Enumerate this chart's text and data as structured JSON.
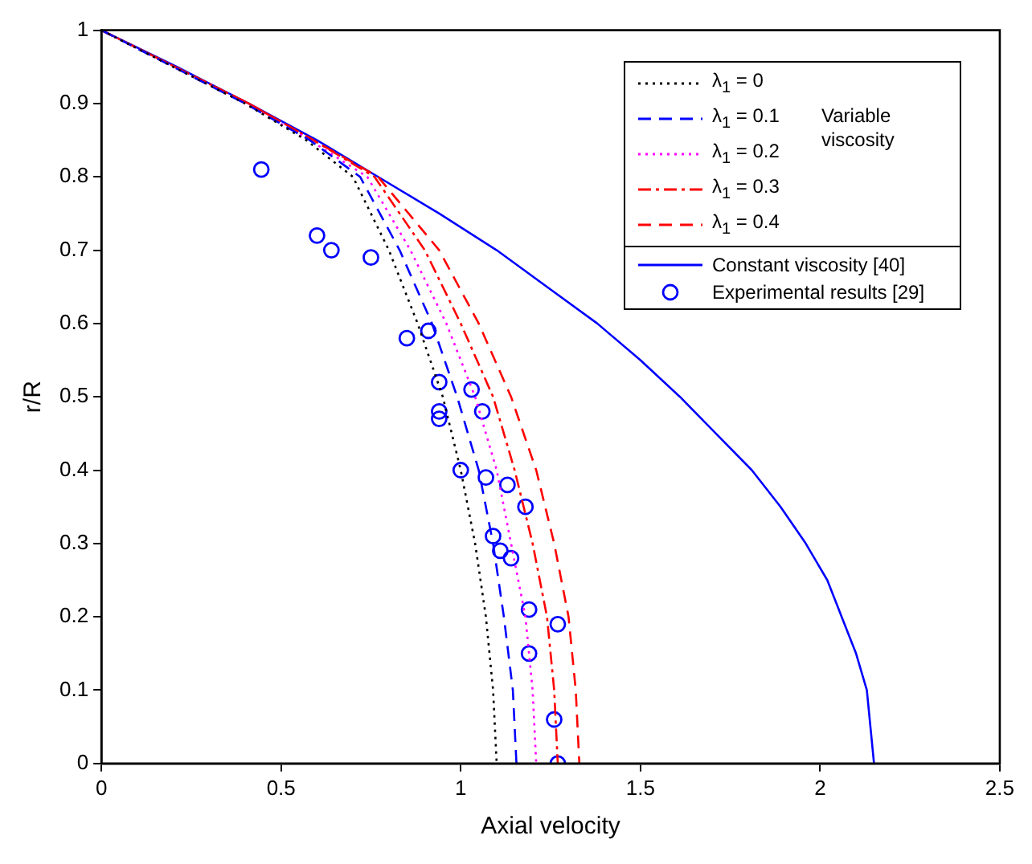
{
  "chart_data": {
    "type": "line",
    "xlabel": "Axial velocity",
    "ylabel": "r/R",
    "xlim": [
      0,
      2.5
    ],
    "xticks": [
      0,
      0.5,
      1,
      1.5,
      2,
      2.5
    ],
    "ylim": [
      0,
      1
    ],
    "yticks": [
      0,
      0.1,
      0.2,
      0.3,
      0.4,
      0.5,
      0.6,
      0.7,
      0.8,
      0.9,
      1
    ],
    "grid": false,
    "legend": "top right",
    "annotations": [
      "Variable viscosity"
    ],
    "series": [
      {
        "name": "λ$_{1}$ = 0",
        "color": "#000000",
        "line_style": "dotted",
        "marker": "none",
        "x": [
          0,
          0.4,
          0.57,
          0.7,
          0.8,
          0.88,
          0.95,
          1.0,
          1.04,
          1.07,
          1.09,
          1.1
        ],
        "values": [
          1,
          0.9,
          0.85,
          0.8,
          0.7,
          0.6,
          0.5,
          0.4,
          0.3,
          0.2,
          0.1,
          0
        ]
      },
      {
        "name": "λ$_{1}$ = 0.1",
        "color": "#0000ff",
        "line_style": "dashed",
        "marker": "none",
        "x": [
          0,
          0.4,
          0.58,
          0.72,
          0.83,
          0.92,
          0.99,
          1.05,
          1.09,
          1.12,
          1.145,
          1.155
        ],
        "values": [
          1,
          0.9,
          0.85,
          0.8,
          0.7,
          0.6,
          0.5,
          0.4,
          0.3,
          0.2,
          0.1,
          0
        ]
      },
      {
        "name": "λ$_{1}$ = 0.2",
        "color": "#ff00ff",
        "line_style": "dotted",
        "marker": "none",
        "x": [
          0,
          0.4,
          0.58,
          0.74,
          0.86,
          0.96,
          1.04,
          1.1,
          1.14,
          1.18,
          1.2,
          1.21
        ],
        "values": [
          1,
          0.9,
          0.85,
          0.8,
          0.7,
          0.6,
          0.5,
          0.4,
          0.3,
          0.2,
          0.1,
          0
        ]
      },
      {
        "name": "λ$_{1}$ = 0.3",
        "color": "#ff0000",
        "line_style": "dashdot",
        "marker": "none",
        "x": [
          0,
          0.41,
          0.59,
          0.76,
          0.9,
          1.0,
          1.09,
          1.15,
          1.2,
          1.24,
          1.26,
          1.27
        ],
        "values": [
          1,
          0.9,
          0.85,
          0.8,
          0.7,
          0.6,
          0.5,
          0.4,
          0.3,
          0.2,
          0.1,
          0
        ]
      },
      {
        "name": "λ$_{1}$ = 0.4",
        "color": "#ff0000",
        "line_style": "dashed",
        "marker": "none",
        "x": [
          0,
          0.41,
          0.59,
          0.77,
          0.94,
          1.05,
          1.14,
          1.21,
          1.26,
          1.3,
          1.32,
          1.33
        ],
        "values": [
          1,
          0.9,
          0.85,
          0.8,
          0.7,
          0.6,
          0.5,
          0.4,
          0.3,
          0.2,
          0.1,
          0
        ]
      },
      {
        "name": "Constant viscosity [40]",
        "color": "#0000ff",
        "line_style": "solid",
        "marker": "none",
        "x": [
          0,
          0.21,
          0.41,
          0.6,
          0.77,
          0.94,
          1.1,
          1.24,
          1.38,
          1.5,
          1.61,
          1.71,
          1.81,
          1.89,
          1.96,
          2.02,
          2.06,
          2.1,
          2.13,
          2.14,
          2.15
        ],
        "values": [
          1,
          0.95,
          0.9,
          0.85,
          0.8,
          0.75,
          0.7,
          0.65,
          0.6,
          0.55,
          0.5,
          0.45,
          0.4,
          0.35,
          0.3,
          0.25,
          0.2,
          0.15,
          0.1,
          0.05,
          0
        ]
      },
      {
        "name": "Experimental results [29]",
        "type": "scatter",
        "color": "#0000ff",
        "marker": "circle",
        "x": [
          0.445,
          0.6,
          0.64,
          0.75,
          0.85,
          0.91,
          0.94,
          1.03,
          0.94,
          0.94,
          1.06,
          1.0,
          1.07,
          1.13,
          1.18,
          1.09,
          1.11,
          1.14,
          1.19,
          1.27,
          1.19,
          1.26,
          1.27
        ],
        "values": [
          0.81,
          0.72,
          0.7,
          0.69,
          0.58,
          0.59,
          0.52,
          0.51,
          0.48,
          0.47,
          0.48,
          0.4,
          0.39,
          0.38,
          0.35,
          0.31,
          0.29,
          0.28,
          0.21,
          0.19,
          0.15,
          0.06,
          0
        ]
      }
    ]
  }
}
